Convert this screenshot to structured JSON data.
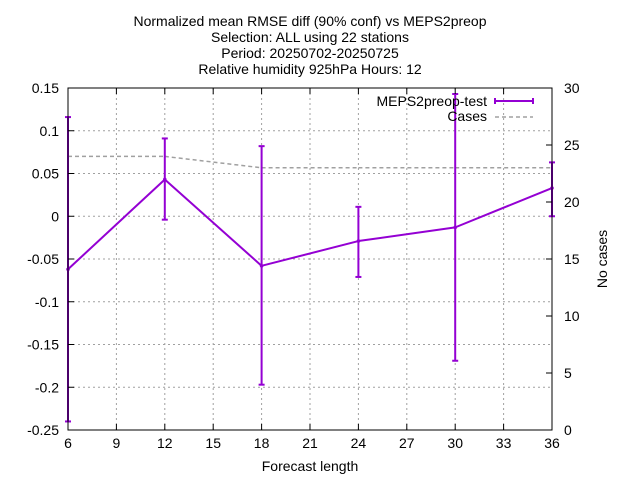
{
  "chart_data": {
    "type": "line",
    "title_lines": [
      "Normalized mean RMSE diff (90% conf) vs MEPS2preop",
      "Selection: ALL using    22 stations",
      "Period: 20250702-20250725",
      "Relative humidity 925hPa   Hours: 12"
    ],
    "xlabel": "Forecast length",
    "ylabel": "",
    "y2label": "No cases",
    "xlim": [
      6,
      36
    ],
    "ylim": [
      -0.25,
      0.15
    ],
    "y2lim": [
      0,
      30
    ],
    "xticks": [
      "6",
      "9",
      "12",
      "15",
      "18",
      "21",
      "24",
      "27",
      "30",
      "33",
      "36"
    ],
    "yticks": [
      "0.15",
      "0.1",
      "0.05",
      "0",
      "-0.05",
      "-0.1",
      "-0.15",
      "-0.2",
      "-0.25"
    ],
    "y2ticks": [
      "30",
      "25",
      "20",
      "15",
      "10",
      "5",
      "0"
    ],
    "grid": true,
    "legend_position": "top-right",
    "series": [
      {
        "name": "MEPS2preop-test",
        "axis": "left",
        "color": "#9400d3",
        "style": "solid-errorbars",
        "x": [
          6,
          12,
          18,
          24,
          30,
          36
        ],
        "y": [
          -0.062,
          0.043,
          -0.058,
          -0.029,
          -0.013,
          0.033
        ],
        "err_low": [
          -0.24,
          -0.004,
          -0.197,
          -0.071,
          -0.169,
          0.0
        ],
        "err_high": [
          0.116,
          0.091,
          0.082,
          0.011,
          0.143,
          0.063
        ]
      },
      {
        "name": "Cases",
        "axis": "right",
        "color": "#a0a0a0",
        "style": "dashed",
        "x": [
          6,
          12,
          18,
          24,
          30,
          36
        ],
        "y": [
          24,
          24,
          23,
          23,
          23,
          23
        ]
      }
    ]
  }
}
